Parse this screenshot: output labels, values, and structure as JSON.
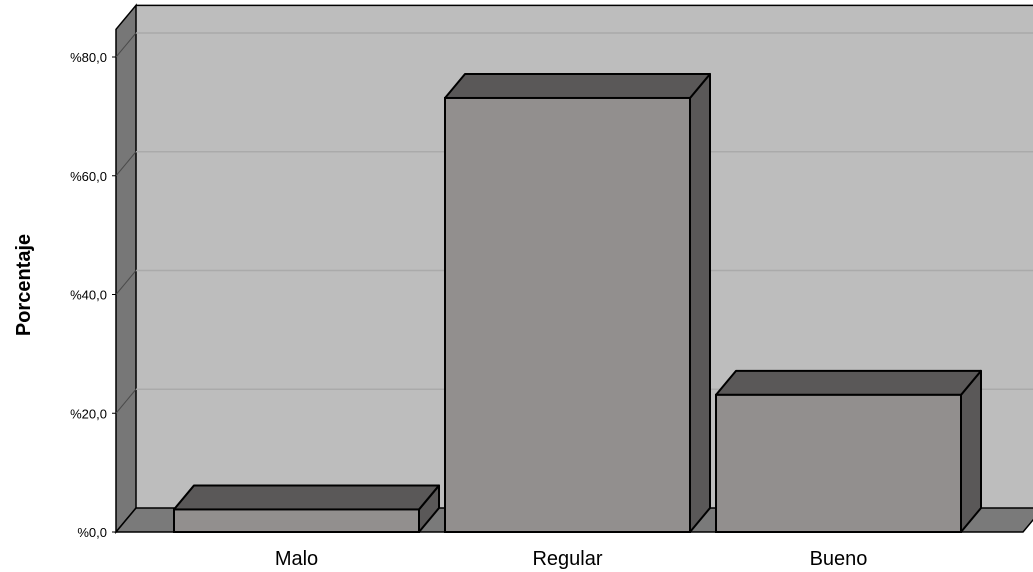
{
  "chart_data": {
    "type": "bar",
    "categories": [
      "Malo",
      "Regular",
      "Bueno"
    ],
    "values": [
      3.8,
      73.1,
      23.1
    ],
    "xlabel": "",
    "ylabel": "Porcentaje",
    "ylim": [
      0,
      85
    ],
    "yticks": [
      0,
      20,
      40,
      60,
      80
    ],
    "ytick_labels": [
      "%0,0",
      "%20,0",
      "%40,0",
      "%60,0",
      "%80,0"
    ],
    "grid": true,
    "legend": "none",
    "style": "3d",
    "colors": {
      "bar_front": "#928f8e",
      "bar_top": "#5a5858",
      "bar_side": "#5a5858",
      "wall": "#bdbdbd",
      "side_wall": "#777777",
      "floor": "#7a7a7a",
      "gridline": "#aaaaaa",
      "outline": "#000000"
    }
  }
}
